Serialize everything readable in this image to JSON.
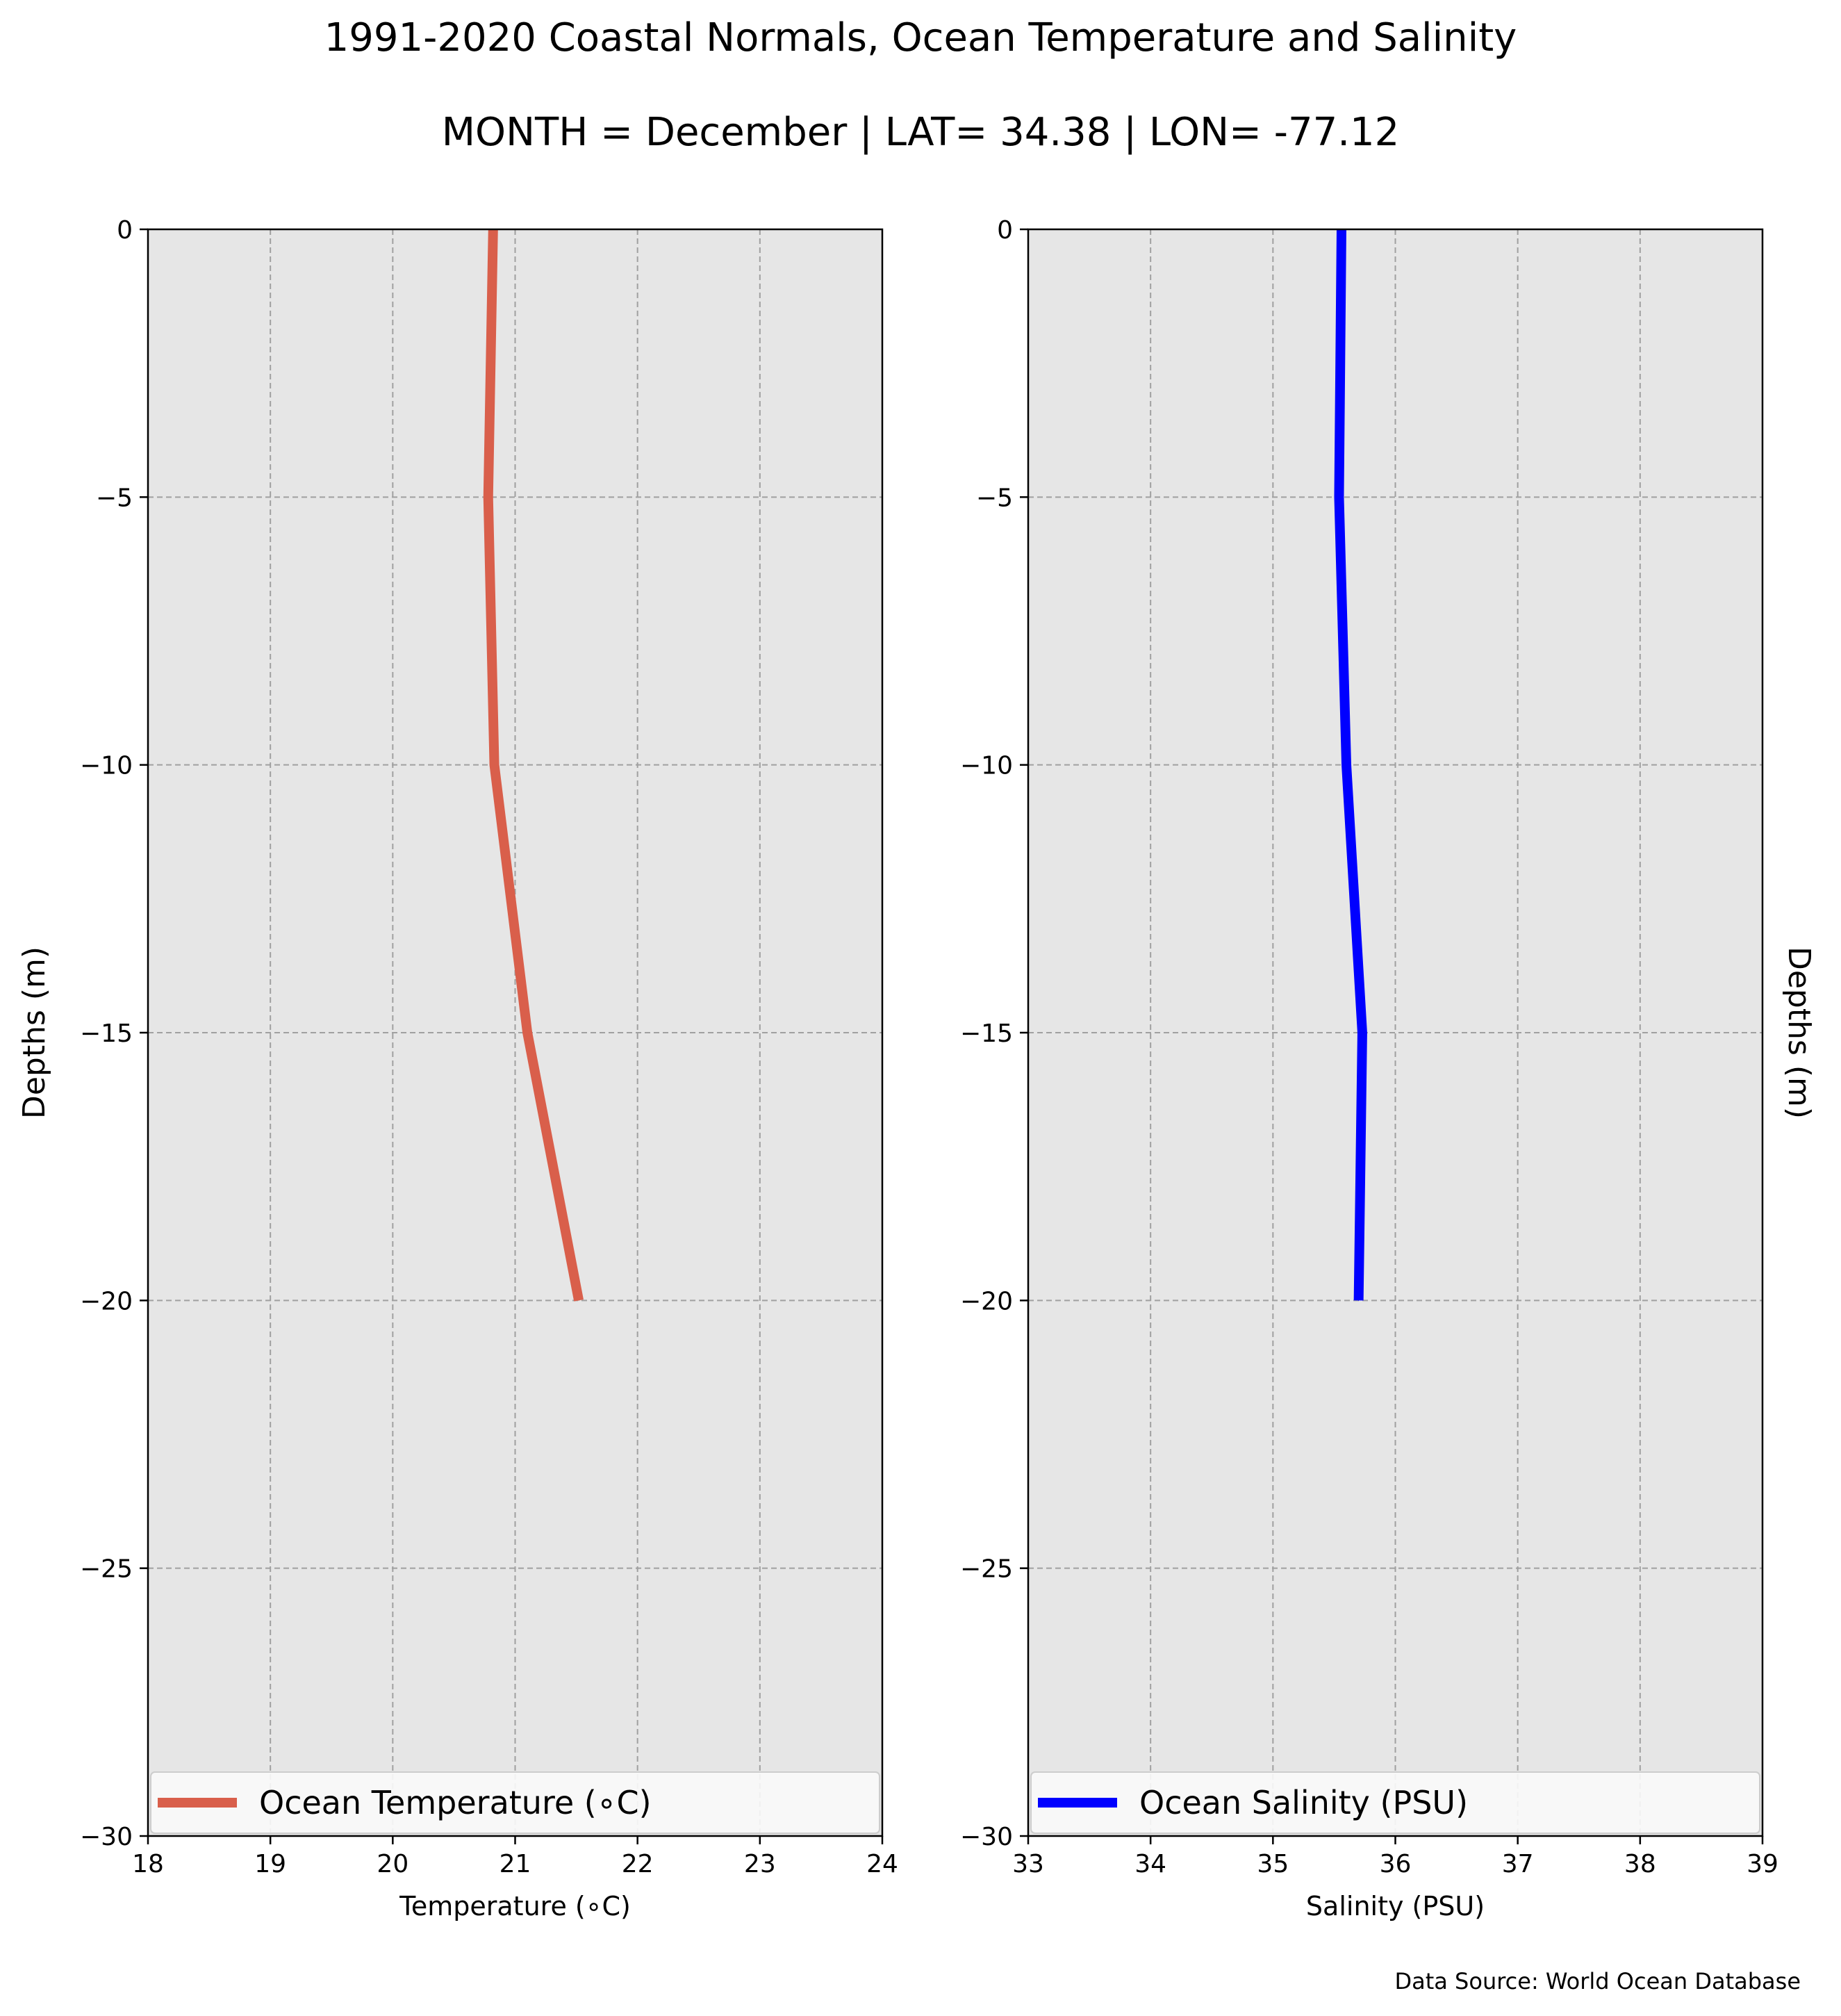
{
  "figure": {
    "title": "1991-2020 Coastal Normals, Ocean Temperature and Salinity",
    "subtitle": "MONTH = December | LAT= 34.38 | LON= -77.12",
    "source_note": "Data Source: World Ocean Database"
  },
  "colors": {
    "temperature": "#d95f4b",
    "salinity": "#0000ff",
    "panel_bg": "#e6e6e6",
    "grid": "#a0a0a0"
  },
  "chart_data": [
    {
      "type": "line",
      "xlabel": "Temperature (∘C)",
      "ylabel": "Depths (m)",
      "xlim": [
        18,
        24
      ],
      "ylim": [
        -30,
        0
      ],
      "x_ticks": [
        "18",
        "19",
        "20",
        "21",
        "22",
        "23",
        "24"
      ],
      "y_ticks": [
        "0",
        "−5",
        "−10",
        "−15",
        "−20",
        "−25",
        "−30"
      ],
      "grid": true,
      "legend": "lower center",
      "series": [
        {
          "name": "Ocean Temperature (∘C)",
          "x": [
            20.82,
            20.78,
            20.83,
            21.1,
            21.52
          ],
          "y": [
            0,
            -5,
            -10,
            -15,
            -20
          ]
        }
      ]
    },
    {
      "type": "line",
      "xlabel": "Salinity (PSU)",
      "ylabel": "Depths (m)",
      "ylabel_side": "right",
      "xlim": [
        33,
        39
      ],
      "ylim": [
        -30,
        0
      ],
      "x_ticks": [
        "33",
        "34",
        "35",
        "36",
        "37",
        "38",
        "39"
      ],
      "y_ticks": [
        "0",
        "−5",
        "−10",
        "−15",
        "−20",
        "−25",
        "−30"
      ],
      "grid": true,
      "legend": "lower center",
      "series": [
        {
          "name": "Ocean Salinity (PSU)",
          "x": [
            35.56,
            35.54,
            35.6,
            35.73,
            35.7
          ],
          "y": [
            0,
            -5,
            -10,
            -15,
            -20
          ]
        }
      ]
    }
  ]
}
